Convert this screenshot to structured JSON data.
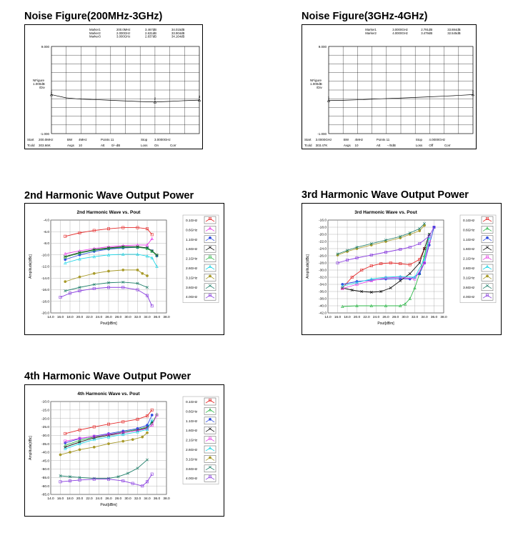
{
  "page": {
    "titles": {
      "nf1": "Noise Figure(200MHz-3GHz)",
      "nf2": "Noise Figure(3GHz-4GHz)",
      "h2": "2nd Harmonic Wave Output Power",
      "h3": "3rd Harmonic Wave Output Power",
      "h4": "4th Harmonic Wave Output Power"
    }
  },
  "chart_data": [
    {
      "id": "nf1",
      "type": "line",
      "markers": [
        {
          "label": "Marker1",
          "freq": "200.0MHz",
          "value": "3.467dB",
          "gain": "34.015dB"
        },
        {
          "label": "Marker2",
          "freq": "2.000GHz",
          "value": "2.631dB",
          "gain": "33.904dB"
        },
        {
          "label": "Marker3",
          "freq": "3.000GHz",
          "value": "2.837dB",
          "gain": "34.164dB"
        }
      ],
      "y_top": "9.000",
      "y_bottom": "-1.000",
      "y_ref": "1.000dB",
      "y_label_lines": [
        "NFigure",
        "1.000dB",
        "/Div"
      ],
      "ylim": [
        -1,
        9
      ],
      "x": [
        0,
        1,
        2,
        3,
        4,
        5,
        6,
        7,
        8,
        9,
        10
      ],
      "values": [
        3.47,
        3.1,
        2.95,
        2.9,
        2.82,
        2.75,
        2.68,
        2.63,
        2.7,
        2.78,
        2.84
      ],
      "marker_points": [
        {
          "x": 0,
          "tag": "1"
        },
        {
          "x": 7,
          "tag": "2"
        },
        {
          "x": 10,
          "tag": "3"
        }
      ],
      "footer": {
        "row1": [
          "Start",
          "200.0MHz",
          "BW",
          "4MHz",
          "Points 11",
          "Stop",
          "3.0000GHz"
        ],
        "row2": [
          "Tcold",
          "303.66K",
          "Avgs",
          "10",
          "Att",
          "0/--dB",
          "Loss",
          "On",
          "Corr"
        ]
      }
    },
    {
      "id": "nf2",
      "type": "line",
      "markers": [
        {
          "label": "Marker1",
          "freq": "3.0000GHz",
          "value": "2.791dB",
          "gain": "33.884dB"
        },
        {
          "label": "Marker2",
          "freq": "4.0000GHz",
          "value": "3.479dB",
          "gain": "32.545dB"
        }
      ],
      "y_top": "9.000",
      "y_bottom": "-1.000",
      "y_ref": "1.000dB",
      "y_label_lines": [
        "NFigure",
        "1.000dB",
        "/Div"
      ],
      "ylim": [
        -1,
        9
      ],
      "x": [
        0,
        1,
        2,
        3,
        4,
        5,
        6,
        7,
        8,
        9,
        10
      ],
      "values": [
        2.79,
        2.82,
        2.88,
        2.95,
        3.02,
        3.08,
        3.15,
        3.22,
        3.3,
        3.38,
        3.48
      ],
      "marker_points": [
        {
          "x": 0,
          "tag": "1"
        },
        {
          "x": 10,
          "tag": "2"
        }
      ],
      "footer": {
        "row1": [
          "Start",
          "3.0000GHz",
          "BW",
          "4MHz",
          "Points 11",
          "Stop",
          "4.0000GHz"
        ],
        "row2": [
          "Tcold",
          "303.47K",
          "Avgs",
          "10",
          "Att",
          "--/0dB",
          "Loss",
          "Off",
          "Corr"
        ]
      }
    },
    {
      "id": "h2",
      "type": "line",
      "title": "2nd Harmonic Wave vs. Pout",
      "xlabel": "Pout[dBm]",
      "ylabel": "Amplitude[dBc]",
      "xlim": [
        14,
        38
      ],
      "ylim": [
        -20,
        -4
      ],
      "x_ticks": [
        "14.0",
        "16.0",
        "18.0",
        "20.0",
        "22.0",
        "24.0",
        "26.0",
        "28.0",
        "30.0",
        "32.0",
        "34.0",
        "36.0",
        "38.0"
      ],
      "y_ticks": [
        "-4.0",
        "-6.0",
        "-8.0",
        "-10.0",
        "-12.0",
        "-14.0",
        "-16.0",
        "-18.0",
        "-20.0"
      ],
      "series": [
        {
          "name": "0.1GHz",
          "color": "#e52d2d",
          "x": [
            17,
            20,
            23,
            26,
            29,
            32,
            34,
            35
          ],
          "y": [
            -6.8,
            -6.2,
            -5.8,
            -5.5,
            -5.3,
            -5.3,
            -5.5,
            -6.5
          ]
        },
        {
          "name": "0.6GHz",
          "color": "#e63ee6",
          "x": [
            17,
            20,
            23,
            26,
            29,
            32,
            34,
            35
          ],
          "y": [
            -9.8,
            -9.3,
            -8.9,
            -8.6,
            -8.4,
            -8.3,
            -8.3,
            -7.2
          ]
        },
        {
          "name": "1.1GHz",
          "color": "#2d4be0",
          "x": [
            17,
            20,
            23,
            26,
            29,
            32,
            34,
            35,
            36
          ],
          "y": [
            -10.8,
            -10.0,
            -9.4,
            -9.0,
            -8.8,
            -8.7,
            -8.8,
            -9.3,
            -10.2
          ]
        },
        {
          "name": "1.6GHz",
          "color": "#111111",
          "x": [
            17,
            20,
            23,
            26,
            29,
            32,
            34,
            35,
            36
          ],
          "y": [
            -10.3,
            -9.6,
            -9.1,
            -8.8,
            -8.6,
            -8.6,
            -8.8,
            -9.3,
            -10.0
          ]
        },
        {
          "name": "2.1GHz",
          "color": "#2fb84a",
          "x": [
            17,
            20,
            23,
            26,
            29,
            32,
            34,
            35,
            36
          ],
          "y": [
            -10.4,
            -9.7,
            -9.2,
            -8.9,
            -8.7,
            -8.7,
            -8.9,
            -9.4,
            -10.1
          ]
        },
        {
          "name": "2.6GHz",
          "color": "#22d6e6",
          "x": [
            17,
            20,
            23,
            26,
            29,
            32,
            34,
            35,
            36
          ],
          "y": [
            -11.4,
            -10.7,
            -10.3,
            -10.0,
            -9.9,
            -9.9,
            -10.2,
            -10.5,
            -12.0
          ]
        },
        {
          "name": "3.1GHz",
          "color": "#a89a2a",
          "x": [
            17,
            20,
            23,
            26,
            29,
            32,
            33,
            34
          ],
          "y": [
            -14.6,
            -13.8,
            -13.2,
            -12.8,
            -12.6,
            -12.6,
            -13.2,
            -13.6
          ]
        },
        {
          "name": "3.6GHz",
          "color": "#1f7f6a",
          "x": [
            17,
            20,
            23,
            26,
            29,
            32,
            34
          ],
          "y": [
            -16.2,
            -15.6,
            -15.1,
            -14.8,
            -14.7,
            -14.9,
            -15.6
          ]
        },
        {
          "name": "4.0GHz",
          "color": "#8a3ee0",
          "x": [
            16,
            18,
            20,
            23,
            26,
            29,
            32,
            34,
            35
          ],
          "y": [
            -17.3,
            -16.6,
            -16.2,
            -15.8,
            -15.6,
            -15.6,
            -16.0,
            -17.0,
            -18.8
          ]
        }
      ]
    },
    {
      "id": "h3",
      "type": "line",
      "title": "3rd Harmonic Wave vs. Pout",
      "xlabel": "Pout[dBm]",
      "ylabel": "Amplitude[dBc]",
      "xlim": [
        14,
        38
      ],
      "ylim": [
        -42,
        -16
      ],
      "x_ticks": [
        "14.0",
        "16.0",
        "18.0",
        "20.0",
        "22.0",
        "24.0",
        "26.0",
        "28.0",
        "30.0",
        "32.0",
        "34.0",
        "36.0",
        "38.0"
      ],
      "y_ticks": [
        "-16.0",
        "-18.0",
        "-20.0",
        "-22.0",
        "-24.0",
        "-26.0",
        "-28.0",
        "-30.0",
        "-32.0",
        "-34.0",
        "-36.0",
        "-38.0",
        "-40.0",
        "-42.0"
      ],
      "series": [
        {
          "name": "0.1GHz",
          "color": "#e52d2d",
          "x": [
            17,
            19,
            21,
            23,
            25,
            27,
            29,
            31,
            33,
            34
          ],
          "y": [
            -35.0,
            -32.0,
            -30.0,
            -28.8,
            -28.2,
            -28.0,
            -28.2,
            -28.5,
            -27.0,
            -24.0
          ]
        },
        {
          "name": "0.6GHz",
          "color": "#2fb84a",
          "x": [
            17,
            20,
            23,
            26,
            29,
            30,
            31,
            32,
            33,
            34,
            35
          ],
          "y": [
            -40.2,
            -40.0,
            -40.0,
            -40.0,
            -40.0,
            -39.5,
            -38.0,
            -35.0,
            -31.0,
            -26.0,
            -20.0
          ]
        },
        {
          "name": "1.1GHz",
          "color": "#2d4be0",
          "x": [
            17,
            20,
            23,
            26,
            29,
            31,
            33,
            34,
            35,
            36
          ],
          "y": [
            -34.0,
            -33.2,
            -32.8,
            -32.5,
            -32.4,
            -32.5,
            -31.0,
            -28.0,
            -23.0,
            -18.0
          ]
        },
        {
          "name": "1.6GHz",
          "color": "#111111",
          "x": [
            17,
            19,
            21,
            23,
            25,
            27,
            29,
            31,
            33,
            34,
            35
          ],
          "y": [
            -35.0,
            -35.6,
            -36.0,
            -36.2,
            -36.0,
            -35.0,
            -33.0,
            -31.0,
            -28.0,
            -24.0,
            -20.0
          ]
        },
        {
          "name": "2.1GHz",
          "color": "#e63ee6",
          "x": [
            17,
            20,
            23,
            26,
            29,
            32,
            34,
            35
          ],
          "y": [
            -35.2,
            -34.0,
            -33.0,
            -32.2,
            -32.0,
            -32.5,
            -28.0,
            -22.0
          ]
        },
        {
          "name": "2.6GHz",
          "color": "#22d6e6",
          "x": [
            17,
            20,
            23,
            26,
            29,
            32,
            34,
            35
          ],
          "y": [
            -34.5,
            -33.5,
            -32.5,
            -32.0,
            -31.8,
            -32.0,
            -27.0,
            -21.0
          ]
        },
        {
          "name": "3.1GHz",
          "color": "#a89a2a",
          "x": [
            16,
            18,
            20,
            23,
            26,
            29,
            31,
            33,
            34
          ],
          "y": [
            -25.8,
            -24.8,
            -24.0,
            -23.0,
            -22.0,
            -21.0,
            -20.0,
            -19.0,
            -17.5
          ]
        },
        {
          "name": "3.6GHz",
          "color": "#1f7f6a",
          "x": [
            16,
            18,
            20,
            23,
            26,
            29,
            31,
            33,
            34
          ],
          "y": [
            -25.5,
            -24.5,
            -23.6,
            -22.6,
            -21.6,
            -20.6,
            -19.6,
            -18.4,
            -17.0
          ]
        },
        {
          "name": "4.0GHz",
          "color": "#8a3ee0",
          "x": [
            16,
            18,
            20,
            23,
            26,
            29,
            31,
            33,
            35,
            36
          ],
          "y": [
            -28.0,
            -27.2,
            -26.6,
            -25.8,
            -25.0,
            -24.2,
            -23.6,
            -22.6,
            -20.5,
            -18.0
          ]
        }
      ]
    },
    {
      "id": "h4",
      "type": "line",
      "title": "4th Harmonic Wave vs. Pout",
      "xlabel": "Pout[dBm]",
      "ylabel": "Amplitude[dBc]",
      "xlim": [
        14,
        38
      ],
      "ylim": [
        -65,
        -10
      ],
      "x_ticks": [
        "14.0",
        "16.0",
        "18.0",
        "20.0",
        "22.0",
        "24.0",
        "26.0",
        "28.0",
        "30.0",
        "32.0",
        "34.0",
        "36.0",
        "38.0"
      ],
      "y_ticks": [
        "-10.0",
        "-15.0",
        "-20.0",
        "-25.0",
        "-30.0",
        "-35.0",
        "-40.0",
        "-45.0",
        "-50.0",
        "-55.0",
        "-60.0",
        "-65.0"
      ],
      "series": [
        {
          "name": "0.1GHz",
          "color": "#e52d2d",
          "x": [
            17,
            20,
            23,
            26,
            29,
            32,
            34,
            35
          ],
          "y": [
            -29.0,
            -26.8,
            -25.0,
            -23.4,
            -22.0,
            -20.5,
            -18.5,
            -15.0
          ]
        },
        {
          "name": "0.6GHz",
          "color": "#2fb84a",
          "x": [
            17,
            20,
            23,
            26,
            29,
            32,
            34,
            35,
            36
          ],
          "y": [
            -36.0,
            -33.0,
            -31.0,
            -29.5,
            -28.0,
            -26.5,
            -25.0,
            -23.0,
            -17.5
          ]
        },
        {
          "name": "1.1GHz",
          "color": "#2d4be0",
          "x": [
            17,
            20,
            23,
            26,
            29,
            32,
            34,
            35
          ],
          "y": [
            -34.5,
            -32.0,
            -30.5,
            -29.0,
            -27.5,
            -26.0,
            -24.0,
            -18.0
          ]
        },
        {
          "name": "1.6GHz",
          "color": "#111111",
          "x": [
            17,
            20,
            23,
            26,
            29,
            32,
            34,
            35
          ],
          "y": [
            -37.0,
            -34.0,
            -31.5,
            -30.0,
            -28.5,
            -27.0,
            -25.5,
            -22.0
          ]
        },
        {
          "name": "2.1GHz",
          "color": "#e63ee6",
          "x": [
            17,
            20,
            23,
            26,
            29,
            32,
            34,
            35,
            36
          ],
          "y": [
            -33.5,
            -31.8,
            -30.6,
            -29.5,
            -28.4,
            -27.2,
            -26.0,
            -24.0,
            -18.0
          ]
        },
        {
          "name": "2.6GHz",
          "color": "#22d6e6",
          "x": [
            17,
            20,
            23,
            26,
            29,
            32,
            34,
            35
          ],
          "y": [
            -38.0,
            -35.0,
            -32.5,
            -31.0,
            -29.5,
            -28.0,
            -26.5,
            -21.0
          ]
        },
        {
          "name": "3.1GHz",
          "color": "#a89a2a",
          "x": [
            16,
            18,
            20,
            23,
            26,
            29,
            31,
            33,
            34
          ],
          "y": [
            -41.5,
            -40.0,
            -38.5,
            -37.0,
            -35.0,
            -33.5,
            -32.5,
            -31.0,
            -28.5
          ]
        },
        {
          "name": "3.6GHz",
          "color": "#1f7f6a",
          "x": [
            16,
            18,
            20,
            23,
            26,
            28,
            30,
            32,
            34
          ],
          "y": [
            -54.0,
            -54.5,
            -55.0,
            -55.5,
            -55.5,
            -54.5,
            -52.5,
            -49.5,
            -44.5
          ]
        },
        {
          "name": "4.0GHz",
          "color": "#8a3ee0",
          "x": [
            16,
            18,
            20,
            23,
            26,
            29,
            31,
            33,
            34,
            35
          ],
          "y": [
            -57.5,
            -57.0,
            -56.5,
            -56.0,
            -56.0,
            -57.0,
            -58.5,
            -60.0,
            -57.5,
            -53.0
          ]
        }
      ]
    }
  ]
}
